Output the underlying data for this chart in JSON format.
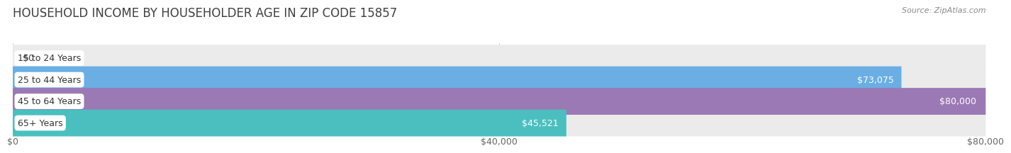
{
  "title": "HOUSEHOLD INCOME BY HOUSEHOLDER AGE IN ZIP CODE 15857",
  "source": "Source: ZipAtlas.com",
  "categories": [
    "15 to 24 Years",
    "25 to 44 Years",
    "45 to 64 Years",
    "65+ Years"
  ],
  "values": [
    0,
    73075,
    80000,
    45521
  ],
  "value_labels": [
    "$0",
    "$73,075",
    "$80,000",
    "$45,521"
  ],
  "bar_colors": [
    "#e8919a",
    "#6aaee4",
    "#9b79b4",
    "#4bbfc0"
  ],
  "xmax": 80000,
  "xtick_labels": [
    "$0",
    "$40,000",
    "$80,000"
  ],
  "xtick_vals": [
    0,
    40000,
    80000
  ],
  "background_color": "#ffffff",
  "bar_bg_color": "#ebebeb",
  "title_fontsize": 12,
  "source_fontsize": 8,
  "label_fontsize": 9,
  "value_fontsize": 9
}
